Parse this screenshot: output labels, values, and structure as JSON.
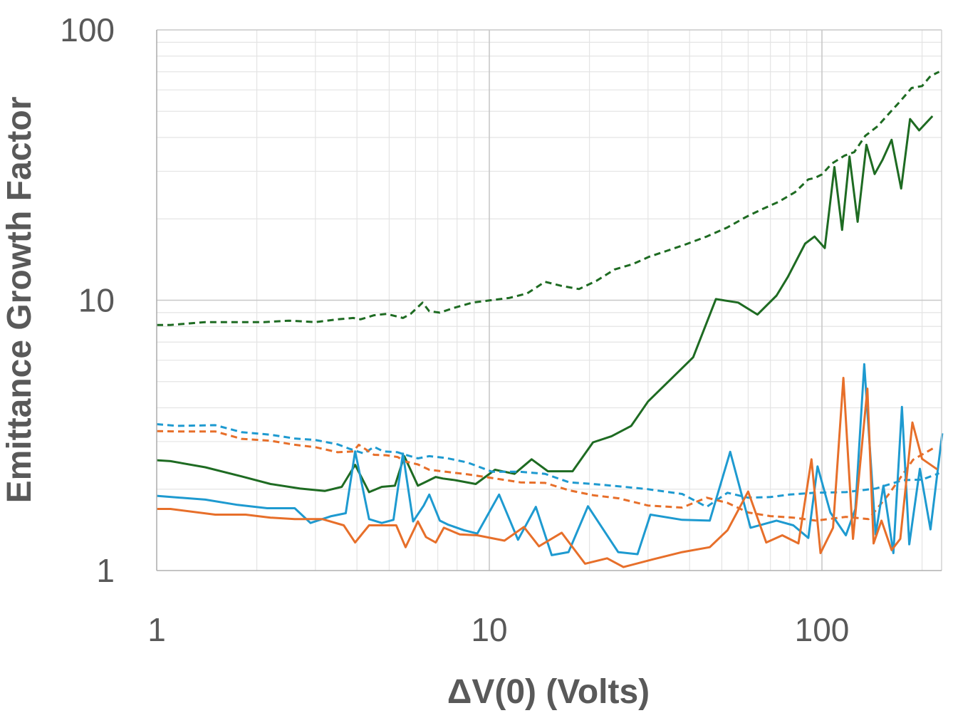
{
  "chart_data": {
    "type": "line",
    "title": "",
    "xlabel": "ΔV(0) (Volts)",
    "ylabel": "Emittance Growth Factor",
    "xscale": "log",
    "yscale": "log",
    "xlim": [
      1,
      230
    ],
    "ylim": [
      1,
      100
    ],
    "x_ticks": [
      "1",
      "10",
      "100"
    ],
    "y_ticks": [
      "1",
      "10",
      "100"
    ],
    "grid": true,
    "legend": "none",
    "series": [
      {
        "color": "#1E6B22",
        "dash": "dashed",
        "points": [
          [
            1,
            8.1
          ],
          [
            1.1,
            8.1
          ],
          [
            1.4,
            8.3
          ],
          [
            1.7,
            8.3
          ],
          [
            2.1,
            8.3
          ],
          [
            2.5,
            8.4
          ],
          [
            3.0,
            8.3
          ],
          [
            3.5,
            8.5
          ],
          [
            3.9,
            8.6
          ],
          [
            4.1,
            8.5
          ],
          [
            4.5,
            8.8
          ],
          [
            4.9,
            8.9
          ],
          [
            5.3,
            8.7
          ],
          [
            5.5,
            8.6
          ],
          [
            5.8,
            8.9
          ],
          [
            6.3,
            9.8
          ],
          [
            6.6,
            9.1
          ],
          [
            7.1,
            9.0
          ],
          [
            7.9,
            9.4
          ],
          [
            8.9,
            9.8
          ],
          [
            10.1,
            10.0
          ],
          [
            11.5,
            10.2
          ],
          [
            13,
            10.6
          ],
          [
            14.7,
            11.7
          ],
          [
            16.5,
            11.3
          ],
          [
            18.6,
            11.0
          ],
          [
            21,
            11.8
          ],
          [
            23.8,
            13.0
          ],
          [
            27,
            13.6
          ],
          [
            30.3,
            14.5
          ],
          [
            34,
            15.2
          ],
          [
            39,
            16.1
          ],
          [
            45,
            17.2
          ],
          [
            52,
            18.6
          ],
          [
            59,
            20.3
          ],
          [
            66,
            21.7
          ],
          [
            74,
            23.1
          ],
          [
            83,
            25.1
          ],
          [
            91,
            28.0
          ],
          [
            95,
            28.3
          ],
          [
            100,
            29.2
          ],
          [
            107,
            32.0
          ],
          [
            117,
            34.3
          ],
          [
            125,
            35.3
          ],
          [
            135,
            40.6
          ],
          [
            147,
            44.0
          ],
          [
            157,
            48.2
          ],
          [
            172,
            54.5
          ],
          [
            186,
            61.0
          ],
          [
            200,
            62.0
          ],
          [
            212,
            67.5
          ],
          [
            225,
            70.0
          ]
        ]
      },
      {
        "color": "#1E6B22",
        "dash": "solid",
        "points": [
          [
            1,
            2.56
          ],
          [
            1.1,
            2.54
          ],
          [
            1.4,
            2.41
          ],
          [
            1.8,
            2.23
          ],
          [
            2.2,
            2.09
          ],
          [
            2.7,
            2.01
          ],
          [
            3.2,
            1.97
          ],
          [
            3.6,
            2.04
          ],
          [
            3.95,
            2.46
          ],
          [
            4.35,
            1.95
          ],
          [
            4.75,
            2.04
          ],
          [
            5.2,
            2.06
          ],
          [
            5.55,
            2.65
          ],
          [
            6.1,
            2.06
          ],
          [
            6.5,
            2.14
          ],
          [
            6.9,
            2.22
          ],
          [
            7.25,
            2.19
          ],
          [
            7.9,
            2.16
          ],
          [
            9.1,
            2.09
          ],
          [
            10.4,
            2.36
          ],
          [
            11.9,
            2.28
          ],
          [
            13.4,
            2.58
          ],
          [
            15,
            2.33
          ],
          [
            17.8,
            2.33
          ],
          [
            20.5,
            2.98
          ],
          [
            23.3,
            3.14
          ],
          [
            26.7,
            3.43
          ],
          [
            30,
            4.22
          ],
          [
            35,
            5.08
          ],
          [
            41,
            6.15
          ],
          [
            48,
            10.1
          ],
          [
            56,
            9.8
          ],
          [
            64,
            8.85
          ],
          [
            73,
            10.4
          ],
          [
            79,
            12.2
          ],
          [
            89,
            16.2
          ],
          [
            95,
            17.2
          ],
          [
            102,
            15.6
          ],
          [
            109,
            31.1
          ],
          [
            115,
            18.2
          ],
          [
            121,
            34.0
          ],
          [
            128,
            19.5
          ],
          [
            136,
            37.6
          ],
          [
            144,
            29.3
          ],
          [
            152,
            33.0
          ],
          [
            162,
            39.2
          ],
          [
            173,
            25.9
          ],
          [
            184,
            46.8
          ],
          [
            196,
            42.5
          ],
          [
            215,
            48.0
          ]
        ]
      },
      {
        "color": "#1E9AD0",
        "dash": "dashed",
        "points": [
          [
            1,
            3.48
          ],
          [
            1.15,
            3.43
          ],
          [
            1.5,
            3.45
          ],
          [
            1.8,
            3.25
          ],
          [
            2.2,
            3.18
          ],
          [
            2.6,
            3.08
          ],
          [
            3.0,
            3.04
          ],
          [
            3.5,
            2.93
          ],
          [
            3.8,
            2.82
          ],
          [
            4.2,
            2.71
          ],
          [
            4.5,
            2.87
          ],
          [
            4.8,
            2.76
          ],
          [
            5.3,
            2.74
          ],
          [
            5.6,
            2.68
          ],
          [
            6.1,
            2.6
          ],
          [
            6.6,
            2.65
          ],
          [
            7.4,
            2.61
          ],
          [
            8.6,
            2.51
          ],
          [
            10.2,
            2.32
          ],
          [
            12.4,
            2.32
          ],
          [
            14.7,
            2.28
          ],
          [
            17.4,
            2.12
          ],
          [
            20.5,
            2.09
          ],
          [
            24.5,
            2.05
          ],
          [
            30,
            2.0
          ],
          [
            38,
            1.92
          ],
          [
            45,
            1.72
          ],
          [
            52,
            1.94
          ],
          [
            60,
            1.86
          ],
          [
            70,
            1.87
          ],
          [
            80,
            1.91
          ],
          [
            95,
            1.94
          ],
          [
            118,
            1.95
          ],
          [
            145,
            2.01
          ],
          [
            175,
            2.16
          ],
          [
            200,
            2.17
          ],
          [
            225,
            2.29
          ]
        ]
      },
      {
        "color": "#E76F2A",
        "dash": "dashed",
        "points": [
          [
            1,
            3.28
          ],
          [
            1.15,
            3.27
          ],
          [
            1.5,
            3.27
          ],
          [
            1.8,
            3.07
          ],
          [
            2.2,
            3.02
          ],
          [
            2.6,
            2.92
          ],
          [
            3.0,
            2.86
          ],
          [
            3.5,
            2.74
          ],
          [
            3.9,
            2.76
          ],
          [
            4.05,
            2.92
          ],
          [
            4.5,
            2.68
          ],
          [
            4.9,
            2.67
          ],
          [
            5.3,
            2.63
          ],
          [
            5.6,
            2.53
          ],
          [
            6.1,
            2.47
          ],
          [
            6.6,
            2.36
          ],
          [
            7.4,
            2.32
          ],
          [
            8.6,
            2.27
          ],
          [
            10.2,
            2.2
          ],
          [
            12.4,
            2.12
          ],
          [
            14.7,
            2.11
          ],
          [
            17.4,
            1.98
          ],
          [
            20.5,
            1.9
          ],
          [
            24.5,
            1.85
          ],
          [
            30,
            1.74
          ],
          [
            38,
            1.71
          ],
          [
            45,
            1.86
          ],
          [
            52,
            1.78
          ],
          [
            60,
            1.64
          ],
          [
            70,
            1.59
          ],
          [
            82,
            1.57
          ],
          [
            96,
            1.53
          ],
          [
            118,
            1.58
          ],
          [
            138,
            1.55
          ],
          [
            158,
            1.9
          ],
          [
            188,
            2.57
          ],
          [
            220,
            2.87
          ]
        ]
      },
      {
        "color": "#1E9AD0",
        "dash": "solid",
        "points": [
          [
            1,
            1.89
          ],
          [
            1.4,
            1.83
          ],
          [
            1.75,
            1.75
          ],
          [
            2.15,
            1.7
          ],
          [
            2.6,
            1.7
          ],
          [
            2.9,
            1.5
          ],
          [
            3.35,
            1.59
          ],
          [
            3.7,
            1.63
          ],
          [
            3.95,
            2.76
          ],
          [
            4.35,
            1.55
          ],
          [
            4.75,
            1.5
          ],
          [
            5.15,
            1.54
          ],
          [
            5.5,
            2.71
          ],
          [
            5.9,
            1.52
          ],
          [
            6.35,
            1.74
          ],
          [
            6.6,
            1.91
          ],
          [
            7.1,
            1.53
          ],
          [
            7.5,
            1.48
          ],
          [
            8.4,
            1.41
          ],
          [
            9.2,
            1.37
          ],
          [
            10.7,
            1.91
          ],
          [
            12.2,
            1.3
          ],
          [
            13.8,
            1.72
          ],
          [
            15.4,
            1.14
          ],
          [
            17.3,
            1.17
          ],
          [
            19.8,
            1.73
          ],
          [
            24.4,
            1.17
          ],
          [
            27.9,
            1.15
          ],
          [
            30.5,
            1.61
          ],
          [
            38,
            1.54
          ],
          [
            46,
            1.53
          ],
          [
            53,
            2.75
          ],
          [
            61,
            1.44
          ],
          [
            73,
            1.53
          ],
          [
            82,
            1.47
          ],
          [
            91,
            1.32
          ],
          [
            97,
            2.43
          ],
          [
            106,
            1.64
          ],
          [
            118,
            1.35
          ],
          [
            126,
            1.69
          ],
          [
            134,
            5.8
          ],
          [
            145,
            1.36
          ],
          [
            153,
            2.06
          ],
          [
            164,
            1.16
          ],
          [
            174,
            4.03
          ],
          [
            183,
            1.25
          ],
          [
            197,
            2.38
          ],
          [
            212,
            1.42
          ],
          [
            230,
            3.22
          ]
        ]
      },
      {
        "color": "#E76F2A",
        "dash": "solid",
        "points": [
          [
            1,
            1.69
          ],
          [
            1.1,
            1.69
          ],
          [
            1.5,
            1.61
          ],
          [
            1.85,
            1.61
          ],
          [
            2.2,
            1.57
          ],
          [
            2.6,
            1.55
          ],
          [
            3.15,
            1.55
          ],
          [
            3.65,
            1.47
          ],
          [
            3.95,
            1.27
          ],
          [
            4.35,
            1.47
          ],
          [
            4.85,
            1.47
          ],
          [
            5.25,
            1.47
          ],
          [
            5.6,
            1.22
          ],
          [
            6.1,
            1.52
          ],
          [
            6.45,
            1.33
          ],
          [
            6.9,
            1.27
          ],
          [
            7.3,
            1.44
          ],
          [
            8.15,
            1.36
          ],
          [
            9.2,
            1.35
          ],
          [
            11.1,
            1.29
          ],
          [
            12.7,
            1.45
          ],
          [
            14.1,
            1.23
          ],
          [
            16.5,
            1.38
          ],
          [
            19.4,
            1.06
          ],
          [
            22.6,
            1.11
          ],
          [
            25.3,
            1.03
          ],
          [
            31,
            1.1
          ],
          [
            38,
            1.17
          ],
          [
            46,
            1.22
          ],
          [
            52,
            1.41
          ],
          [
            60,
            1.96
          ],
          [
            68,
            1.27
          ],
          [
            76,
            1.35
          ],
          [
            85,
            1.26
          ],
          [
            93,
            2.58
          ],
          [
            99,
            1.16
          ],
          [
            108,
            1.44
          ],
          [
            116,
            5.16
          ],
          [
            124,
            1.31
          ],
          [
            137,
            4.71
          ],
          [
            143,
            1.26
          ],
          [
            151,
            1.53
          ],
          [
            162,
            1.19
          ],
          [
            172,
            1.31
          ],
          [
            187,
            3.53
          ],
          [
            200,
            2.59
          ],
          [
            222,
            2.37
          ]
        ]
      }
    ]
  }
}
